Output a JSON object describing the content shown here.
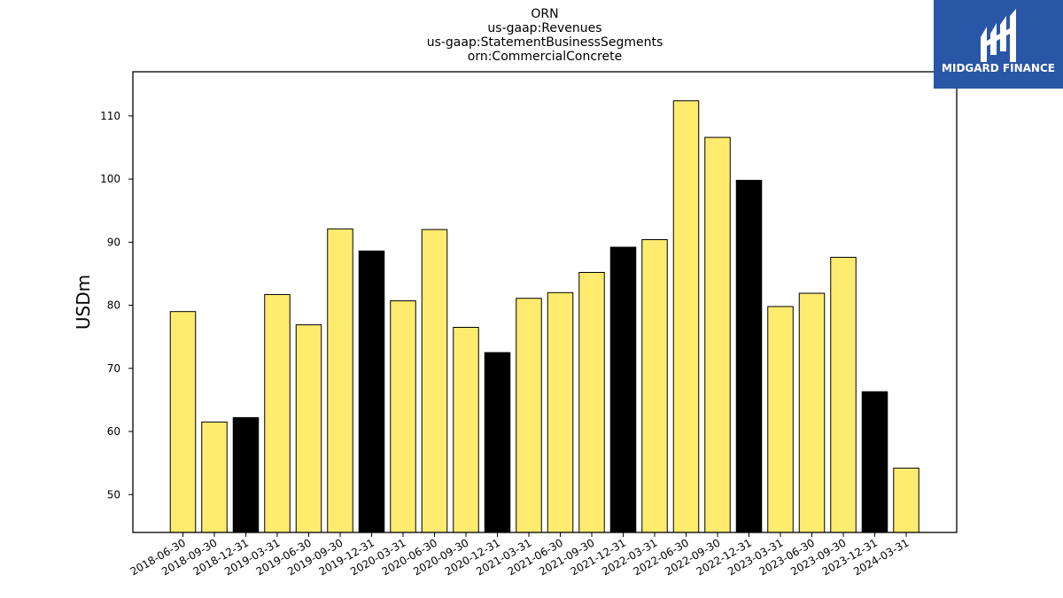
{
  "colors": {
    "bar_default": "#ffeb6e",
    "bar_highlight": "#000000",
    "logo_bg": "#2a56a8"
  },
  "logo": {
    "icon": "midgard-logo-icon",
    "text": "MIDGARD FINANCE"
  },
  "chart_data": {
    "type": "bar",
    "title_lines": [
      "ORN",
      "us-gaap:Revenues",
      "us-gaap:StatementBusinessSegments",
      "orn:CommercialConcrete"
    ],
    "xlabel": "",
    "ylabel": "USDm",
    "ylim": [
      44,
      117
    ],
    "yticks": [
      50,
      60,
      70,
      80,
      90,
      100,
      110
    ],
    "grid": false,
    "categories": [
      "2018-06-30",
      "2018-09-30",
      "2018-12-31",
      "2019-03-31",
      "2019-06-30",
      "2019-09-30",
      "2019-12-31",
      "2020-03-31",
      "2020-06-30",
      "2020-09-30",
      "2020-12-31",
      "2021-03-31",
      "2021-06-30",
      "2021-09-30",
      "2021-12-31",
      "2022-03-31",
      "2022-06-30",
      "2022-09-30",
      "2022-12-31",
      "2023-03-31",
      "2023-06-30",
      "2023-09-30",
      "2023-12-31",
      "2024-03-31"
    ],
    "values": [
      79.0,
      61.5,
      62.2,
      81.7,
      76.9,
      92.1,
      88.6,
      80.7,
      92.0,
      76.5,
      72.5,
      81.1,
      82.0,
      85.2,
      89.2,
      90.4,
      112.4,
      106.6,
      99.8,
      79.8,
      81.9,
      87.6,
      66.3,
      54.2
    ],
    "highlight": [
      false,
      false,
      true,
      false,
      false,
      false,
      true,
      false,
      false,
      false,
      true,
      false,
      false,
      false,
      true,
      false,
      false,
      false,
      true,
      false,
      false,
      false,
      true,
      false
    ]
  }
}
